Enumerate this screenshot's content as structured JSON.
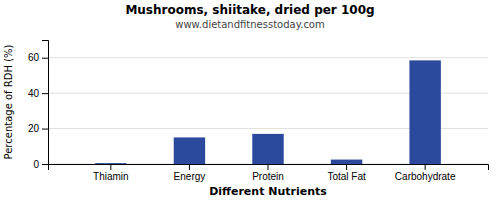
{
  "chart_data": {
    "type": "bar",
    "title": "Mushrooms, shiitake, dried per 100g",
    "subtitle": "www.dietandfitnesstoday.com",
    "xlabel": "Different Nutrients",
    "ylabel": "Percentage of RDH (%)",
    "categories": [
      "Thiamin",
      "Energy",
      "Protein",
      "Total Fat",
      "Carbohydrate"
    ],
    "values": [
      0.5,
      15,
      17,
      2.5,
      58.5
    ],
    "color": "#2b4a9e",
    "ylim": [
      0,
      70
    ],
    "yticks": [
      0,
      20,
      40,
      60
    ],
    "grid": true
  }
}
